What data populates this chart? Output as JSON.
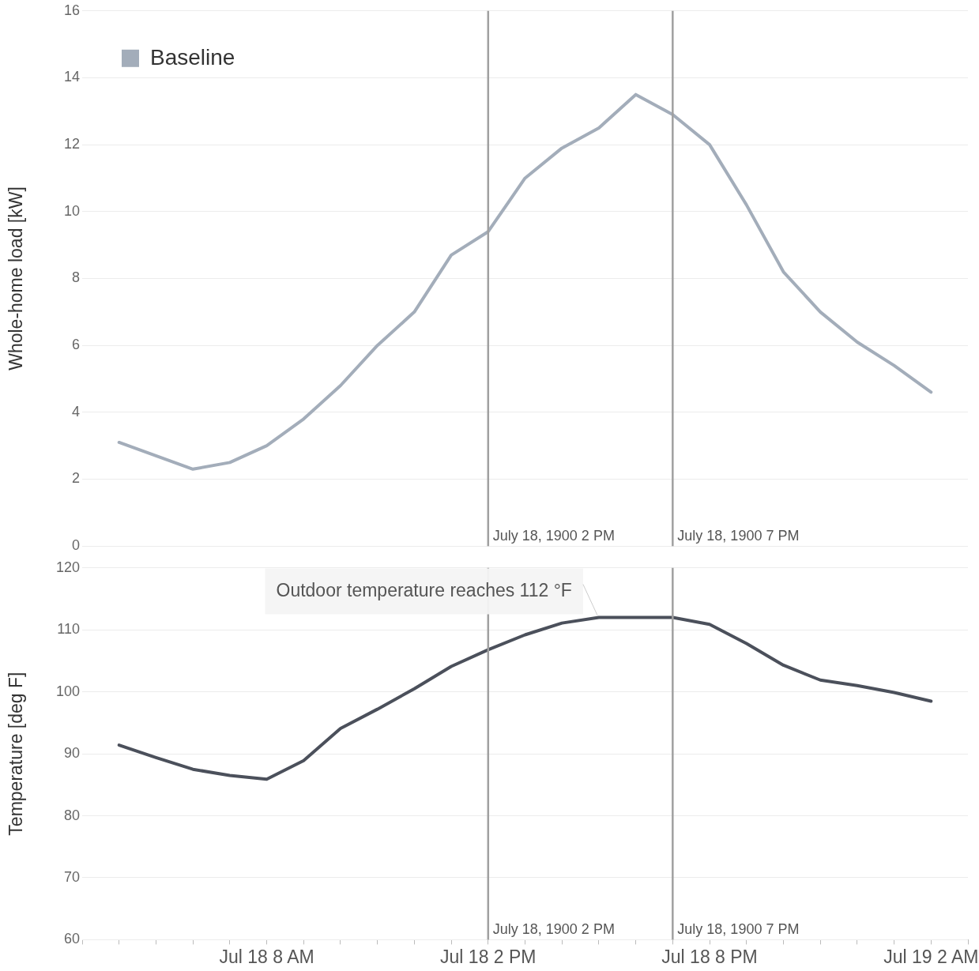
{
  "chart_data": [
    {
      "type": "line",
      "ylabel": "Whole-home load [kW]",
      "x": [
        "1900-07-18T04:00",
        "1900-07-18T05:00",
        "1900-07-18T06:00",
        "1900-07-18T07:00",
        "1900-07-18T08:00",
        "1900-07-18T09:00",
        "1900-07-18T10:00",
        "1900-07-18T11:00",
        "1900-07-18T12:00",
        "1900-07-18T13:00",
        "1900-07-18T14:00",
        "1900-07-18T15:00",
        "1900-07-18T16:00",
        "1900-07-18T17:00",
        "1900-07-18T18:00",
        "1900-07-18T19:00",
        "1900-07-18T20:00",
        "1900-07-18T21:00",
        "1900-07-18T22:00",
        "1900-07-18T23:00",
        "1900-07-19T00:00",
        "1900-07-19T01:00",
        "1900-07-19T02:00"
      ],
      "series": [
        {
          "name": "Baseline",
          "color": "#a3adba",
          "values": [
            3.1,
            2.7,
            2.3,
            2.5,
            3.0,
            3.8,
            4.8,
            6.0,
            7.0,
            8.7,
            9.4,
            11.0,
            11.9,
            12.5,
            13.5,
            12.9,
            12.0,
            10.2,
            8.2,
            7.0,
            6.1,
            5.4,
            4.6
          ]
        }
      ],
      "xlim": [
        "1900-07-18T03:00",
        "1900-07-19T03:00"
      ],
      "ylim": [
        0,
        16
      ],
      "yticks": [
        0,
        2,
        4,
        6,
        8,
        10,
        12,
        14,
        16
      ],
      "grid": "y",
      "legend": "top left",
      "tick_labels": "y",
      "ref_lines": [
        {
          "axis": "x",
          "value": "1900-07-18T14:00",
          "label": "July 18, 1900 2 PM",
          "color": "#a0a0a0"
        },
        {
          "axis": "x",
          "value": "1900-07-18T19:00",
          "label": "July 18, 1900 7 PM",
          "color": "#a0a0a0"
        }
      ]
    },
    {
      "type": "line",
      "ylabel": "Temperature [deg F]",
      "x": [
        "1900-07-18T04:00",
        "1900-07-18T05:00",
        "1900-07-18T06:00",
        "1900-07-18T07:00",
        "1900-07-18T08:00",
        "1900-07-18T09:00",
        "1900-07-18T10:00",
        "1900-07-18T11:00",
        "1900-07-18T12:00",
        "1900-07-18T13:00",
        "1900-07-18T14:00",
        "1900-07-18T15:00",
        "1900-07-18T16:00",
        "1900-07-18T17:00",
        "1900-07-18T18:00",
        "1900-07-18T19:00",
        "1900-07-18T20:00",
        "1900-07-18T21:00",
        "1900-07-18T22:00",
        "1900-07-18T23:00",
        "1900-07-19T00:00",
        "1900-07-19T01:00",
        "1900-07-19T02:00"
      ],
      "series": [
        {
          "color": "#4b505b",
          "values": [
            91.4,
            89.4,
            87.5,
            86.5,
            85.9,
            88.9,
            94.1,
            97.2,
            100.5,
            104.1,
            106.8,
            109.2,
            111.1,
            112,
            112,
            112,
            110.9,
            107.8,
            104.3,
            101.9,
            101,
            99.9,
            98.5
          ]
        }
      ],
      "xlim": [
        "1900-07-18T03:00",
        "1900-07-19T03:00"
      ],
      "xticks": [
        {
          "value": "1900-07-18T03:00",
          "label": null
        },
        {
          "value": "1900-07-18T04:00",
          "label": null
        },
        {
          "value": "1900-07-18T05:00",
          "label": null
        },
        {
          "value": "1900-07-18T06:00",
          "label": null
        },
        {
          "value": "1900-07-18T07:00",
          "label": null
        },
        {
          "value": "1900-07-18T08:00",
          "label": "Jul 18 8 AM"
        },
        {
          "value": "1900-07-18T09:00",
          "label": null
        },
        {
          "value": "1900-07-18T10:00",
          "label": null
        },
        {
          "value": "1900-07-18T11:00",
          "label": null
        },
        {
          "value": "1900-07-18T12:00",
          "label": null
        },
        {
          "value": "1900-07-18T13:00",
          "label": null
        },
        {
          "value": "1900-07-18T14:00",
          "label": "Jul 18 2 PM"
        },
        {
          "value": "1900-07-18T15:00",
          "label": null
        },
        {
          "value": "1900-07-18T16:00",
          "label": null
        },
        {
          "value": "1900-07-18T17:00",
          "label": null
        },
        {
          "value": "1900-07-18T18:00",
          "label": null
        },
        {
          "value": "1900-07-18T19:00",
          "label": null
        },
        {
          "value": "1900-07-18T20:00",
          "label": "Jul 18 8 PM"
        },
        {
          "value": "1900-07-18T21:00",
          "label": null
        },
        {
          "value": "1900-07-18T22:00",
          "label": null
        },
        {
          "value": "1900-07-18T23:00",
          "label": null
        },
        {
          "value": "1900-07-19T00:00",
          "label": null
        },
        {
          "value": "1900-07-19T01:00",
          "label": null
        },
        {
          "value": "1900-07-19T02:00",
          "label": "Jul 19 2 AM"
        },
        {
          "value": "1900-07-19T03:00",
          "label": null
        }
      ],
      "ylim": [
        60,
        120
      ],
      "yticks": [
        60,
        70,
        80,
        90,
        100,
        110,
        120
      ],
      "grid": "y",
      "ref_lines": [
        {
          "axis": "x",
          "value": "1900-07-18T14:00",
          "label": "July 18, 1900 2 PM",
          "color": "#a0a0a0"
        },
        {
          "axis": "x",
          "value": "1900-07-18T19:00",
          "label": "July 18, 1900 7 PM",
          "color": "#a0a0a0"
        }
      ],
      "annotations": [
        {
          "text": "Outdoor temperature reaches 112 °F",
          "x": "1900-07-18T17:00",
          "y": 112
        }
      ]
    }
  ]
}
